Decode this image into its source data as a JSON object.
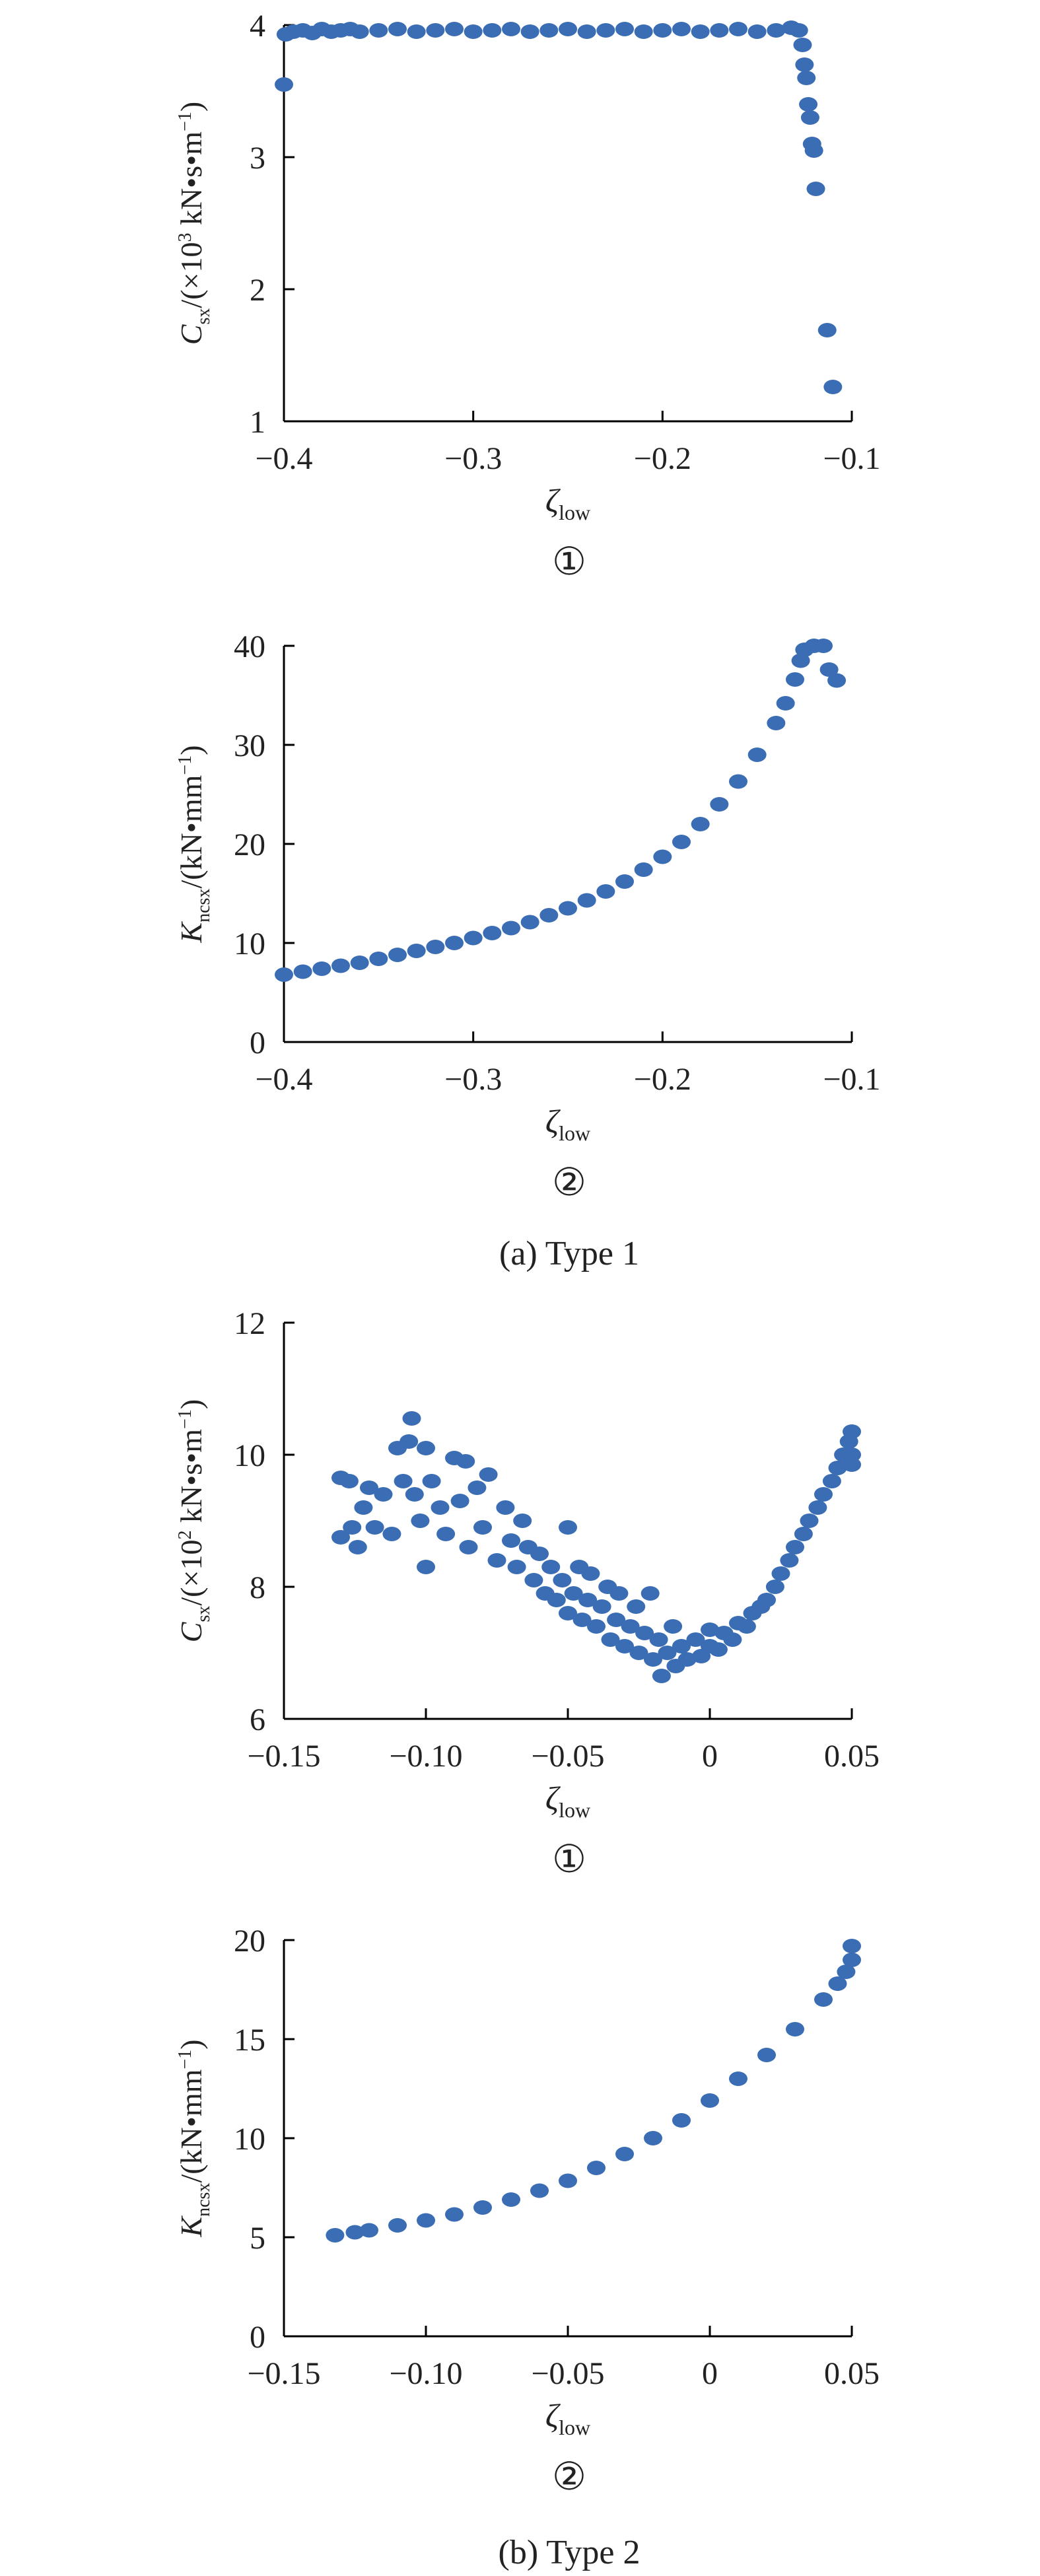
{
  "chart_data": [
    {
      "type": "scatter",
      "panel_id": "a1",
      "panel_marker": "①",
      "ylabel": {
        "main": "C",
        "sub": "sx",
        "rest": "/(×10",
        "sup": "3",
        "after": " kN•s•m",
        "sup2": "−1",
        "end": ")"
      },
      "xlabel": {
        "main": "ζ",
        "sub": "low"
      },
      "xlim": [
        -0.4,
        -0.1
      ],
      "ylim": [
        1,
        4
      ],
      "xticks": [
        -0.4,
        -0.3,
        -0.2,
        -0.1
      ],
      "xtick_labels": [
        "−0.4",
        "−0.3",
        "−0.2",
        "−0.1"
      ],
      "yticks": [
        1,
        2,
        3,
        4
      ],
      "ytick_labels": [
        "1",
        "2",
        "3",
        "4"
      ],
      "color": "#3a6db3",
      "series": [
        {
          "points": [
            [
              -0.4,
              3.55
            ],
            [
              -0.399,
              3.93
            ],
            [
              -0.395,
              3.95
            ],
            [
              -0.39,
              3.96
            ],
            [
              -0.385,
              3.94
            ],
            [
              -0.38,
              3.97
            ],
            [
              -0.375,
              3.95
            ],
            [
              -0.37,
              3.96
            ],
            [
              -0.365,
              3.97
            ],
            [
              -0.36,
              3.95
            ],
            [
              -0.35,
              3.96
            ],
            [
              -0.34,
              3.97
            ],
            [
              -0.33,
              3.95
            ],
            [
              -0.32,
              3.96
            ],
            [
              -0.31,
              3.97
            ],
            [
              -0.3,
              3.95
            ],
            [
              -0.29,
              3.96
            ],
            [
              -0.28,
              3.97
            ],
            [
              -0.27,
              3.95
            ],
            [
              -0.26,
              3.96
            ],
            [
              -0.25,
              3.97
            ],
            [
              -0.24,
              3.95
            ],
            [
              -0.23,
              3.96
            ],
            [
              -0.22,
              3.97
            ],
            [
              -0.21,
              3.95
            ],
            [
              -0.2,
              3.96
            ],
            [
              -0.19,
              3.97
            ],
            [
              -0.18,
              3.95
            ],
            [
              -0.17,
              3.96
            ],
            [
              -0.16,
              3.97
            ],
            [
              -0.15,
              3.95
            ],
            [
              -0.14,
              3.96
            ],
            [
              -0.132,
              3.98
            ],
            [
              -0.128,
              3.96
            ],
            [
              -0.126,
              3.85
            ],
            [
              -0.125,
              3.7
            ],
            [
              -0.124,
              3.6
            ],
            [
              -0.123,
              3.4
            ],
            [
              -0.122,
              3.3
            ],
            [
              -0.121,
              3.1
            ],
            [
              -0.12,
              3.05
            ],
            [
              -0.119,
              2.76
            ],
            [
              -0.113,
              1.69
            ],
            [
              -0.11,
              1.26
            ]
          ]
        }
      ]
    },
    {
      "type": "scatter",
      "panel_id": "a2",
      "panel_marker": "②",
      "ylabel": {
        "main": "K",
        "sub": "ncsx",
        "rest": "/(kN•mm",
        "sup": "−1",
        "after": "",
        "sup2": "",
        "end": ")"
      },
      "xlabel": {
        "main": "ζ",
        "sub": "low"
      },
      "xlim": [
        -0.4,
        -0.1
      ],
      "ylim": [
        0,
        40
      ],
      "xticks": [
        -0.4,
        -0.3,
        -0.2,
        -0.1
      ],
      "xtick_labels": [
        "−0.4",
        "−0.3",
        "−0.2",
        "−0.1"
      ],
      "yticks": [
        0,
        10,
        20,
        30,
        40
      ],
      "ytick_labels": [
        "0",
        "10",
        "20",
        "30",
        "40"
      ],
      "color": "#3a6db3",
      "series": [
        {
          "points": [
            [
              -0.4,
              6.8
            ],
            [
              -0.39,
              7.1
            ],
            [
              -0.38,
              7.4
            ],
            [
              -0.37,
              7.7
            ],
            [
              -0.36,
              8.0
            ],
            [
              -0.35,
              8.4
            ],
            [
              -0.34,
              8.8
            ],
            [
              -0.33,
              9.2
            ],
            [
              -0.32,
              9.6
            ],
            [
              -0.31,
              10.0
            ],
            [
              -0.3,
              10.5
            ],
            [
              -0.29,
              11.0
            ],
            [
              -0.28,
              11.5
            ],
            [
              -0.27,
              12.1
            ],
            [
              -0.26,
              12.8
            ],
            [
              -0.25,
              13.5
            ],
            [
              -0.24,
              14.3
            ],
            [
              -0.23,
              15.2
            ],
            [
              -0.22,
              16.2
            ],
            [
              -0.21,
              17.4
            ],
            [
              -0.2,
              18.7
            ],
            [
              -0.19,
              20.2
            ],
            [
              -0.18,
              22.0
            ],
            [
              -0.17,
              24.0
            ],
            [
              -0.16,
              26.3
            ],
            [
              -0.15,
              29.0
            ],
            [
              -0.14,
              32.2
            ],
            [
              -0.135,
              34.2
            ],
            [
              -0.13,
              36.6
            ],
            [
              -0.127,
              38.5
            ],
            [
              -0.125,
              39.6
            ],
            [
              -0.12,
              40.0
            ],
            [
              -0.115,
              40.0
            ],
            [
              -0.112,
              37.6
            ],
            [
              -0.108,
              36.5
            ]
          ]
        }
      ]
    },
    {
      "type": "scatter",
      "panel_id": "b1",
      "panel_marker": "①",
      "ylabel": {
        "main": "C",
        "sub": "sx",
        "rest": "/(×10",
        "sup": "2",
        "after": " kN•s•m",
        "sup2": "−1",
        "end": ")"
      },
      "xlabel": {
        "main": "ζ",
        "sub": "low"
      },
      "xlim": [
        -0.15,
        0.05
      ],
      "ylim": [
        6,
        12
      ],
      "xticks": [
        -0.15,
        -0.1,
        -0.05,
        0,
        0.05
      ],
      "xtick_labels": [
        "−0.15",
        "−0.10",
        "−0.05",
        "0",
        "0.05"
      ],
      "yticks": [
        6,
        8,
        10,
        12
      ],
      "ytick_labels": [
        "6",
        "8",
        "10",
        "12"
      ],
      "color": "#3a6db3",
      "series": [
        {
          "points": [
            [
              -0.13,
              9.65
            ],
            [
              -0.127,
              9.6
            ],
            [
              -0.13,
              8.75
            ],
            [
              -0.126,
              8.9
            ],
            [
              -0.124,
              8.6
            ],
            [
              -0.122,
              9.2
            ],
            [
              -0.12,
              9.5
            ],
            [
              -0.118,
              8.9
            ],
            [
              -0.115,
              9.4
            ],
            [
              -0.112,
              8.8
            ],
            [
              -0.11,
              10.1
            ],
            [
              -0.108,
              9.6
            ],
            [
              -0.106,
              10.2
            ],
            [
              -0.105,
              10.55
            ],
            [
              -0.104,
              9.4
            ],
            [
              -0.102,
              9.0
            ],
            [
              -0.1,
              8.3
            ],
            [
              -0.1,
              10.1
            ],
            [
              -0.098,
              9.6
            ],
            [
              -0.095,
              9.2
            ],
            [
              -0.093,
              8.8
            ],
            [
              -0.09,
              9.95
            ],
            [
              -0.088,
              9.3
            ],
            [
              -0.086,
              9.9
            ],
            [
              -0.085,
              8.6
            ],
            [
              -0.082,
              9.5
            ],
            [
              -0.08,
              8.9
            ],
            [
              -0.078,
              9.7
            ],
            [
              -0.075,
              8.4
            ],
            [
              -0.072,
              9.2
            ],
            [
              -0.07,
              8.7
            ],
            [
              -0.068,
              8.3
            ],
            [
              -0.066,
              9.0
            ],
            [
              -0.064,
              8.6
            ],
            [
              -0.062,
              8.1
            ],
            [
              -0.06,
              8.5
            ],
            [
              -0.058,
              7.9
            ],
            [
              -0.056,
              8.3
            ],
            [
              -0.054,
              7.8
            ],
            [
              -0.052,
              8.1
            ],
            [
              -0.05,
              8.9
            ],
            [
              -0.05,
              7.6
            ],
            [
              -0.048,
              7.9
            ],
            [
              -0.046,
              8.3
            ],
            [
              -0.045,
              7.5
            ],
            [
              -0.043,
              7.8
            ],
            [
              -0.042,
              8.2
            ],
            [
              -0.04,
              7.4
            ],
            [
              -0.038,
              7.7
            ],
            [
              -0.036,
              8.0
            ],
            [
              -0.035,
              7.2
            ],
            [
              -0.033,
              7.5
            ],
            [
              -0.032,
              7.9
            ],
            [
              -0.03,
              7.1
            ],
            [
              -0.028,
              7.4
            ],
            [
              -0.026,
              7.7
            ],
            [
              -0.025,
              7.0
            ],
            [
              -0.023,
              7.3
            ],
            [
              -0.021,
              7.9
            ],
            [
              -0.02,
              6.9
            ],
            [
              -0.018,
              7.2
            ],
            [
              -0.017,
              6.65
            ],
            [
              -0.015,
              7.0
            ],
            [
              -0.013,
              7.4
            ],
            [
              -0.012,
              6.8
            ],
            [
              -0.01,
              7.1
            ],
            [
              -0.008,
              6.9
            ],
            [
              -0.005,
              7.2
            ],
            [
              -0.003,
              6.95
            ],
            [
              0,
              7.1
            ],
            [
              0,
              7.35
            ],
            [
              0.003,
              7.05
            ],
            [
              0.005,
              7.3
            ],
            [
              0.008,
              7.2
            ],
            [
              0.01,
              7.45
            ],
            [
              0.013,
              7.4
            ],
            [
              0.015,
              7.6
            ],
            [
              0.018,
              7.7
            ],
            [
              0.02,
              7.8
            ],
            [
              0.023,
              8.0
            ],
            [
              0.025,
              8.2
            ],
            [
              0.028,
              8.4
            ],
            [
              0.03,
              8.6
            ],
            [
              0.033,
              8.8
            ],
            [
              0.035,
              9.0
            ],
            [
              0.038,
              9.2
            ],
            [
              0.04,
              9.4
            ],
            [
              0.043,
              9.6
            ],
            [
              0.045,
              9.8
            ],
            [
              0.047,
              10.0
            ],
            [
              0.049,
              10.2
            ],
            [
              0.05,
              10.35
            ],
            [
              0.05,
              10.0
            ],
            [
              0.05,
              9.85
            ]
          ]
        }
      ]
    },
    {
      "type": "scatter",
      "panel_id": "b2",
      "panel_marker": "②",
      "ylabel": {
        "main": "K",
        "sub": "ncsx",
        "rest": "/(kN•mm",
        "sup": "−1",
        "after": "",
        "sup2": "",
        "end": ")"
      },
      "xlabel": {
        "main": "ζ",
        "sub": "low"
      },
      "xlim": [
        -0.15,
        0.05
      ],
      "ylim": [
        0,
        20
      ],
      "xticks": [
        -0.15,
        -0.1,
        -0.05,
        0,
        0.05
      ],
      "xtick_labels": [
        "−0.15",
        "−0.10",
        "−0.05",
        "0",
        "0.05"
      ],
      "yticks": [
        0,
        5,
        10,
        15,
        20
      ],
      "ytick_labels": [
        "0",
        "5",
        "10",
        "15",
        "20"
      ],
      "color": "#3a6db3",
      "series": [
        {
          "points": [
            [
              -0.132,
              5.1
            ],
            [
              -0.125,
              5.25
            ],
            [
              -0.12,
              5.35
            ],
            [
              -0.11,
              5.6
            ],
            [
              -0.1,
              5.85
            ],
            [
              -0.09,
              6.15
            ],
            [
              -0.08,
              6.5
            ],
            [
              -0.07,
              6.9
            ],
            [
              -0.06,
              7.35
            ],
            [
              -0.05,
              7.85
            ],
            [
              -0.04,
              8.5
            ],
            [
              -0.03,
              9.2
            ],
            [
              -0.02,
              10.0
            ],
            [
              -0.01,
              10.9
            ],
            [
              0,
              11.9
            ],
            [
              0.01,
              13.0
            ],
            [
              0.02,
              14.2
            ],
            [
              0.03,
              15.5
            ],
            [
              0.04,
              17.0
            ],
            [
              0.045,
              17.8
            ],
            [
              0.048,
              18.4
            ],
            [
              0.05,
              19.0
            ],
            [
              0.05,
              19.7
            ]
          ]
        }
      ]
    }
  ],
  "captions": {
    "type1": "(a) Type 1",
    "type2": "(b) Type 2"
  }
}
